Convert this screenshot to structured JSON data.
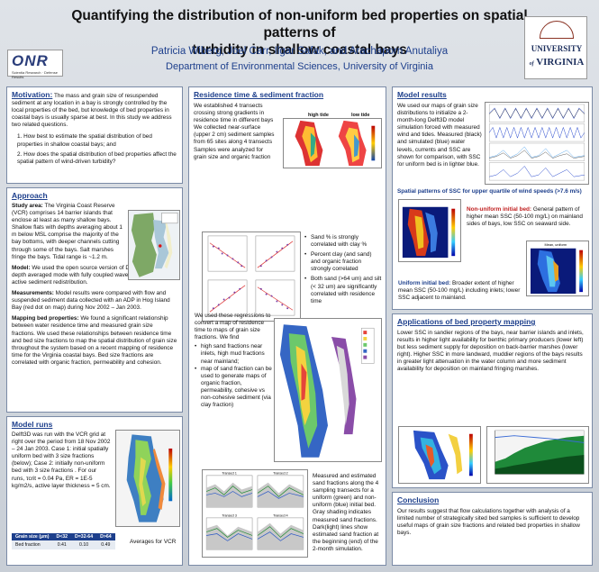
{
  "header": {
    "title_line1": "Quantifying the distribution of non-uniform bed properties on spatial patterns of",
    "title_line2": "turbidity in shallow coastal bays",
    "authors": "Patricia Wiberg, Joel Carr, Ilgar Safak, and Arachaporn Anutaliya",
    "department": "Department of Environmental Sciences, University of Virginia",
    "onr_logo": "ONR",
    "onr_sub": "Scientia Research · Defense Results",
    "uva_line1": "UNIVERSITY",
    "uva_line2": "VIRGINIA",
    "uva_of": "of"
  },
  "motivation": {
    "heading": "Motivation:",
    "body": "The mass and grain size of resuspended sediment at any location in a bay is strongly controlled by the local properties of the bed, but knowledge of bed properties in coastal bays is usually sparse at best. In this study we address two related questions.",
    "q1": "1.  How best to estimate the spatial distribution of bed properties in shallow coastal bays; and",
    "q2": "2.  How does the spatial distribution of bed properties affect the spatial pattern of wind-driven turbidity?"
  },
  "approach": {
    "heading": "Approach",
    "study_label": "Study area:",
    "study_text": "The Virginia Coast Reserve (VCR) comprises 14 barrier islands that enclose at least as many shallow bays. Shallow flats with depths averaging about 1 m below MSL comprise the majority of the bay bottoms, with deeper channels cutting through some of the bays. Salt marshes fringe the bays. Tidal range is ~1.2 m.",
    "model_label": "Model:",
    "model_text": "We used the open source version of Delft3D, running in depth averaged mode with fully coupled waves and currents and active sediment redistribution.",
    "meas_label": "Measurements:",
    "meas_text": "Model results were compared with flow and suspended sediment data collected with an ADP in Hog Island Bay (red dot on map) during Nov 2002 – Jan 2003.",
    "map_label": "Mapping bed properties:",
    "map_text": "We found a significant relationship between water residence time and measured grain size fractions. We used these relationships between residence time and bed size fractions to map the spatial distribution of grain size throughout the system based on a recent mapping of residence time for the Virginia coastal bays. Bed size fractions are correlated with organic fraction, permeability and cohesion."
  },
  "model_runs": {
    "heading": "Model runs",
    "body": "Delft3D was run with the VCR grid at right over the period from 18 Nov 2002 – 24 Jan 2003. Case 1: initial spatially uniform bed with 3 size fractions (below); Case 2: initially non-uniform bed with 3 size fractions . For our runs, τcrit = 0.04 Pa, ER = 1E-5 kg/m2/s, active layer thickness = 5 cm.",
    "table_headers": [
      "Grain size (μm)",
      "D<32",
      "D=32-64",
      "D>64"
    ],
    "table_row": [
      "Bed fraction",
      "0.41",
      "0.10",
      "0.49"
    ],
    "table_caption": "Averages for VCR"
  },
  "residence": {
    "heading": "Residence time & sediment fraction",
    "intro": "We established 4 transects crossing strong gradients in residence time in different bays We collected near-surface (upper 2 cm) sediment samples from 65 sites along 4 transects Samples were analyzed for grain size and organic fraction",
    "high_tide": "high tide",
    "low_tide": "low tide",
    "bullets": [
      "Sand % is strongly correlated with clay %",
      "Percent clay (and sand) and organic fraction strongly correlated",
      "Both sand (>64 um) and silt (< 32 um) are significantly correlated with residence time"
    ],
    "regress_intro": "We used these regressions to convert a map of residence time to maps of grain size fractions. We find",
    "regress_bullets": [
      "high sand fractions near inlets, high mud fractions near mainland;",
      "map of sand fraction can be used to generate maps of organic fraction, permeability, cohesive vs non-cohesive sediment (via clay fraction)"
    ],
    "transects_caption": "Measured and estimated sand fractions along the 4 sampling transects for a uniform (green) and non-uniform (blue) initial bed. Gray shading indicates measured sand fractions. Dark(light) lines show estimated sand fraction at the beginning (end) of the 2-month simulation.",
    "transect_labels": [
      "Transect 1",
      "Transect 2",
      "Transect 3",
      "Transect 4"
    ]
  },
  "results": {
    "heading": "Model results",
    "body": "We used our maps of grain size distributions to initialize a 2-month-long Delft3D model simulation forced with measured wind and tides. Measured (black) and simulated (blue) water levels, currents and SSC are shown for comparison, with SSC for uniform bed is in lighter blue.",
    "spatial_heading": "Spatial patterns of SSC for upper quartile of wind speeds (>7.6 m/s)",
    "nonuniform_label": "Non-uniform initial bed:",
    "nonuniform_text": "General pattern of higher mean SSC (50-100 mg/L) on mainland sides of bays, low SSC on seaward side.",
    "uniform_label": "Uniform initial bed:",
    "uniform_text": "Broader extent of higher mean SSC (50-100 mg/L) including inlets; lower SSC adjacent to mainland.",
    "map_title": "Mean, uniform"
  },
  "applications": {
    "heading": "Applications of bed property mapping",
    "body": "Lower SSC in sandier regions of the bays, near barrier islands and inlets, results in higher light availability for benthic primary producers (lower left) but less sediment supply for deposition on back-barrier marshes (lower right). Higher SSC in more landward, muddier regions of the bays results in greater light attenuation in the water column and more sediment availability for deposition on mainland fringing marshes."
  },
  "conclusion": {
    "heading": "Conclusion",
    "body": "Our results suggest that flow calculations together with analysis of a limited number of strategically sited bed samples is sufficient to develop useful maps of grain size fractions and related bed properties in shallow bays."
  },
  "colors": {
    "heading_blue": "#1d3f8c",
    "accent_red": "#c02020",
    "border": "#7a8aa6"
  }
}
